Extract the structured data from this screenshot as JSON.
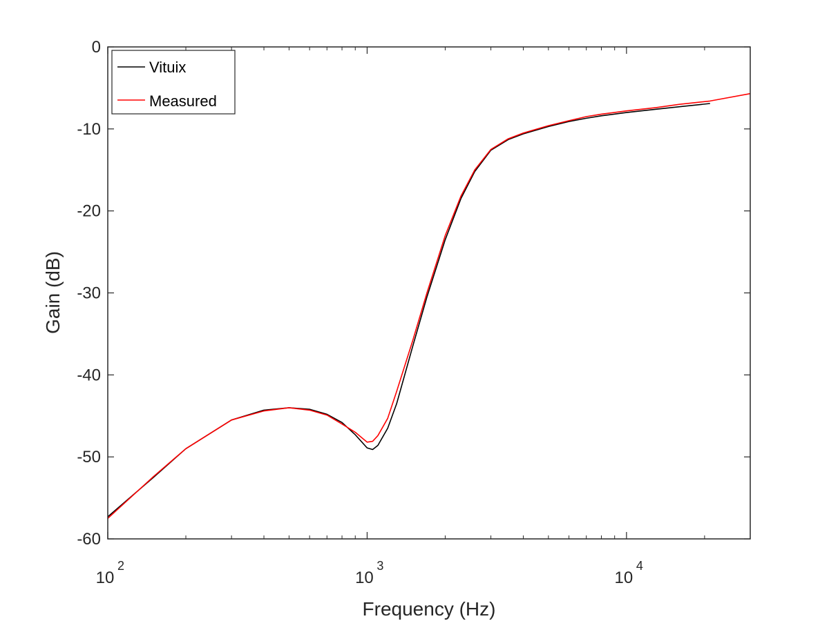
{
  "chart_data": {
    "type": "line",
    "xlabel": "Frequency (Hz)",
    "ylabel": "Gain (dB)",
    "xscale": "log",
    "xlim": [
      100,
      30000
    ],
    "ylim": [
      -60,
      0
    ],
    "y_ticks": [
      {
        "value": 0,
        "label": "0"
      },
      {
        "value": -10,
        "label": "-10"
      },
      {
        "value": -20,
        "label": "-20"
      },
      {
        "value": -30,
        "label": "-30"
      },
      {
        "value": -40,
        "label": "-40"
      },
      {
        "value": -50,
        "label": "-50"
      },
      {
        "value": -60,
        "label": "-60"
      }
    ],
    "x_ticks": [
      {
        "value": 100,
        "base": "10",
        "exp": "2"
      },
      {
        "value": 1000,
        "base": "10",
        "exp": "3"
      },
      {
        "value": 10000,
        "base": "10",
        "exp": "4"
      }
    ],
    "grid": false,
    "box": true,
    "legend": {
      "position": "top-left",
      "entries": [
        "Vituix",
        "Measured"
      ]
    },
    "series": [
      {
        "name": "Vituix",
        "color": "#000000",
        "x": [
          100,
          150,
          200,
          300,
          400,
          500,
          600,
          700,
          800,
          900,
          1000,
          1050,
          1100,
          1200,
          1300,
          1500,
          1700,
          2000,
          2300,
          2600,
          3000,
          3500,
          4000,
          5000,
          6000,
          7000,
          8000,
          10000,
          13000,
          16000,
          21000
        ],
        "y": [
          -57.3,
          -52.5,
          -49.0,
          -45.5,
          -44.3,
          -44.0,
          -44.2,
          -44.8,
          -45.8,
          -47.3,
          -48.9,
          -49.1,
          -48.6,
          -46.5,
          -43.5,
          -36.5,
          -30.5,
          -23.5,
          -18.5,
          -15.2,
          -12.6,
          -11.3,
          -10.6,
          -9.7,
          -9.1,
          -8.7,
          -8.4,
          -8.0,
          -7.6,
          -7.3,
          -6.9
        ]
      },
      {
        "name": "Measured",
        "color": "#ff0000",
        "x": [
          100,
          150,
          200,
          300,
          400,
          500,
          600,
          700,
          800,
          900,
          1000,
          1050,
          1100,
          1200,
          1300,
          1500,
          1700,
          2000,
          2300,
          2600,
          3000,
          3500,
          4000,
          5000,
          6000,
          7000,
          8000,
          10000,
          13000,
          16000,
          21000,
          30000
        ],
        "y": [
          -57.5,
          -52.4,
          -49.0,
          -45.5,
          -44.4,
          -44.0,
          -44.3,
          -44.9,
          -46.0,
          -47.0,
          -48.2,
          -48.1,
          -47.4,
          -45.3,
          -42.0,
          -35.8,
          -30.0,
          -23.0,
          -18.2,
          -15.0,
          -12.5,
          -11.2,
          -10.5,
          -9.6,
          -9.0,
          -8.5,
          -8.2,
          -7.8,
          -7.4,
          -7.0,
          -6.6,
          -5.7
        ]
      }
    ]
  }
}
